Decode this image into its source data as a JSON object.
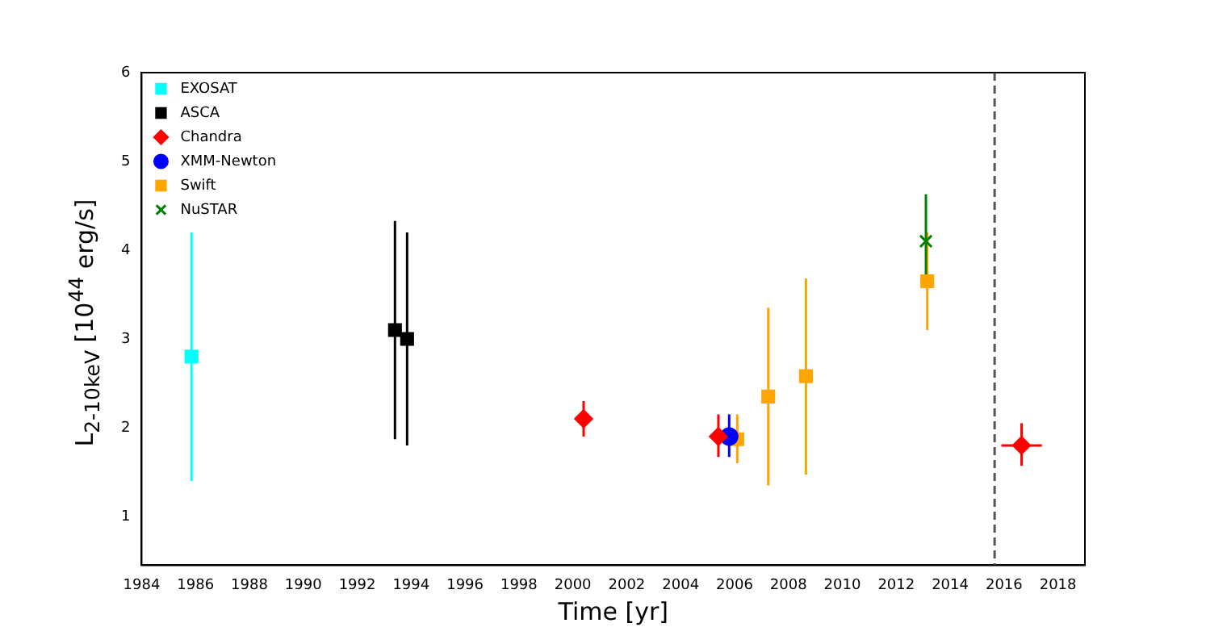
{
  "chart_data": {
    "type": "scatter",
    "xlabel": "Time [yr]",
    "ylabel": "L$_{2-10keV}$ [10$^{44}$ erg/s]",
    "xlim": [
      1984,
      2019
    ],
    "xticks": [
      1984,
      1986,
      1988,
      1990,
      1992,
      1994,
      1996,
      1998,
      2000,
      2002,
      2004,
      2006,
      2008,
      2010,
      2012,
      2014,
      2016,
      2018
    ],
    "ylim": [
      0.45,
      6
    ],
    "yticks": [
      1,
      2,
      3,
      4,
      5,
      6
    ],
    "grid": false,
    "legend": "top left",
    "ref_lines": [
      {
        "axis": "x",
        "value": 2015.65,
        "color": "#555555",
        "line_style": "dashed"
      }
    ],
    "series": [
      {
        "name": "EXOSAT",
        "color": "#00ffff",
        "marker": "square",
        "x": [
          1985.85
        ],
        "values": [
          2.8
        ],
        "errors": [
          [
            1.4,
            4.2
          ]
        ]
      },
      {
        "name": "ASCA",
        "color": "#000000",
        "marker": "square",
        "x": [
          1993.4,
          1993.85
        ],
        "values": [
          3.1,
          3.0
        ],
        "errors": [
          [
            1.87,
            4.33
          ],
          [
            1.8,
            4.2
          ]
        ]
      },
      {
        "name": "Chandra",
        "color": "#ff0000",
        "marker": "diamond",
        "x": [
          2000.4,
          2005.4,
          2016.65
        ],
        "values": [
          2.1,
          1.9,
          1.8
        ],
        "errors": [
          [
            1.9,
            2.3
          ],
          [
            1.67,
            2.15
          ],
          [
            1.57,
            2.05
          ]
        ],
        "xerrors": [
          null,
          null,
          0.75
        ]
      },
      {
        "name": "XMM-Newton",
        "color": "#0000ff",
        "marker": "circle",
        "x": [
          2005.8
        ],
        "values": [
          1.9
        ],
        "errors": [
          [
            1.67,
            2.15
          ]
        ]
      },
      {
        "name": "Swift",
        "color": "#ffa500",
        "marker": "square",
        "x": [
          2006.1,
          2007.25,
          2008.65,
          2013.15
        ],
        "values": [
          1.87,
          2.35,
          2.58,
          3.65
        ],
        "errors": [
          [
            1.6,
            2.15
          ],
          [
            1.35,
            3.35
          ],
          [
            1.47,
            3.68
          ],
          [
            3.1,
            4.2
          ]
        ]
      },
      {
        "name": "NuSTAR",
        "color": "#008000",
        "marker": "cross",
        "x": [
          2013.1
        ],
        "values": [
          4.1
        ],
        "errors": [
          [
            3.6,
            4.63
          ]
        ]
      }
    ]
  }
}
